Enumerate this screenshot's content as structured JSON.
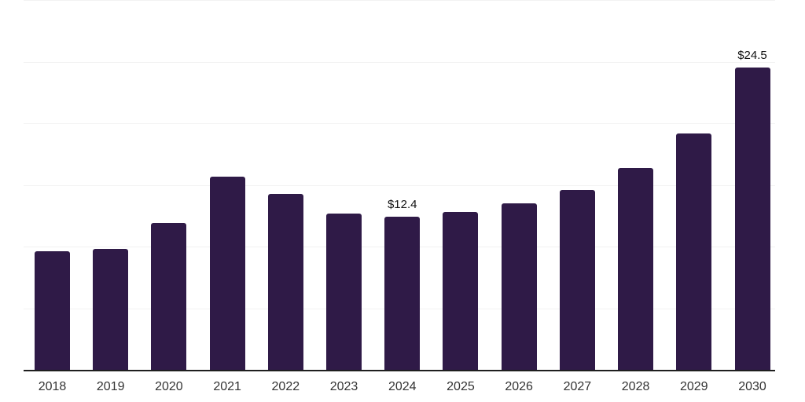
{
  "chart_data": {
    "type": "bar",
    "title": "",
    "xlabel": "",
    "ylabel": "",
    "categories": [
      "2018",
      "2019",
      "2020",
      "2021",
      "2022",
      "2023",
      "2024",
      "2025",
      "2026",
      "2027",
      "2028",
      "2029",
      "2030"
    ],
    "values": [
      9.6,
      9.8,
      11.9,
      15.7,
      14.3,
      12.7,
      12.4,
      12.8,
      13.5,
      14.6,
      16.4,
      19.2,
      24.5
    ],
    "data_labels": [
      null,
      null,
      null,
      null,
      null,
      null,
      "$12.4",
      null,
      null,
      null,
      null,
      null,
      "$24.5"
    ],
    "ylim": [
      0,
      30
    ],
    "gridline_step": 5,
    "grid": true,
    "legend": "none",
    "colors": {
      "bar": "#2f1a47",
      "axis": "#1f1f1f",
      "gridline": "#f2f2f2",
      "data_label": "#111111",
      "tick_label": "#333333",
      "background": "#ffffff"
    }
  }
}
